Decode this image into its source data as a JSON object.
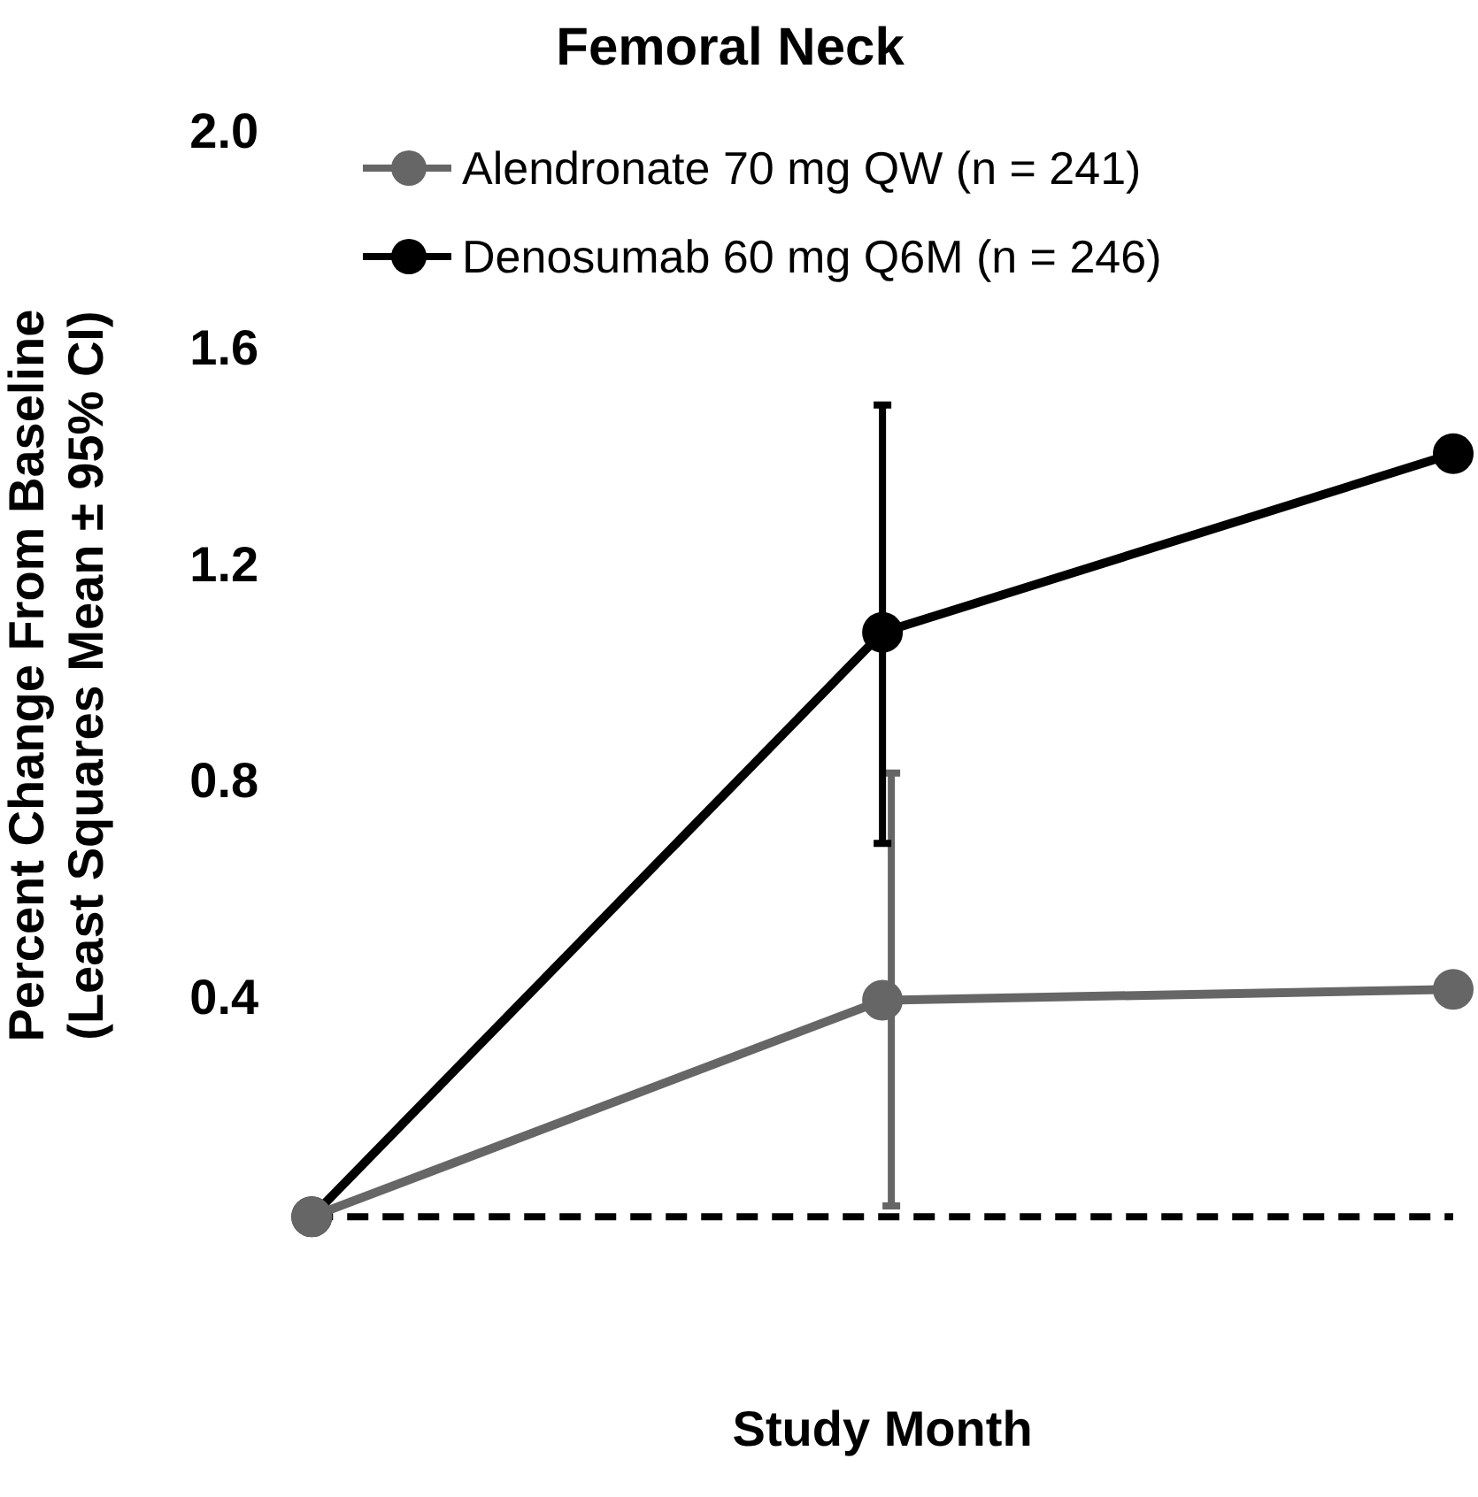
{
  "chart_data": {
    "type": "line",
    "title": "Femoral Neck",
    "xlabel": "Study Month",
    "ylabel": "Percent Change From Baseline\n(Least Squares Mean ± 95% CI)",
    "categories": [
      null,
      null,
      null
    ],
    "series": [
      {
        "name": "Alendronate 70 mg QW (n = 241)",
        "color": "#666666",
        "values": [
          0,
          0.4,
          0.42
        ],
        "errors": [
          null,
          [
            0.02,
            0.82
          ],
          null
        ]
      },
      {
        "name": "Denosumab 60 mg Q6M (n = 246)",
        "color": "#000000",
        "values": [
          0,
          1.08,
          1.41
        ],
        "errors": [
          null,
          [
            0.69,
            1.5
          ],
          null
        ]
      }
    ],
    "ylim": [
      0,
      2.0
    ],
    "yticks": [
      {
        "value": 0.4,
        "label": "0.4"
      },
      {
        "value": 0.8,
        "label": "0.8"
      },
      {
        "value": 1.2,
        "label": "1.2"
      },
      {
        "value": 1.6,
        "label": "1.6"
      },
      {
        "value": 2,
        "label": "2.0"
      }
    ],
    "ref_lines": [
      {
        "axis": "y",
        "value": 0,
        "color": "#000000",
        "line_style": "dashed"
      }
    ],
    "grid": false,
    "legend": "top left",
    "marker": "circle",
    "line_style": "solid"
  }
}
